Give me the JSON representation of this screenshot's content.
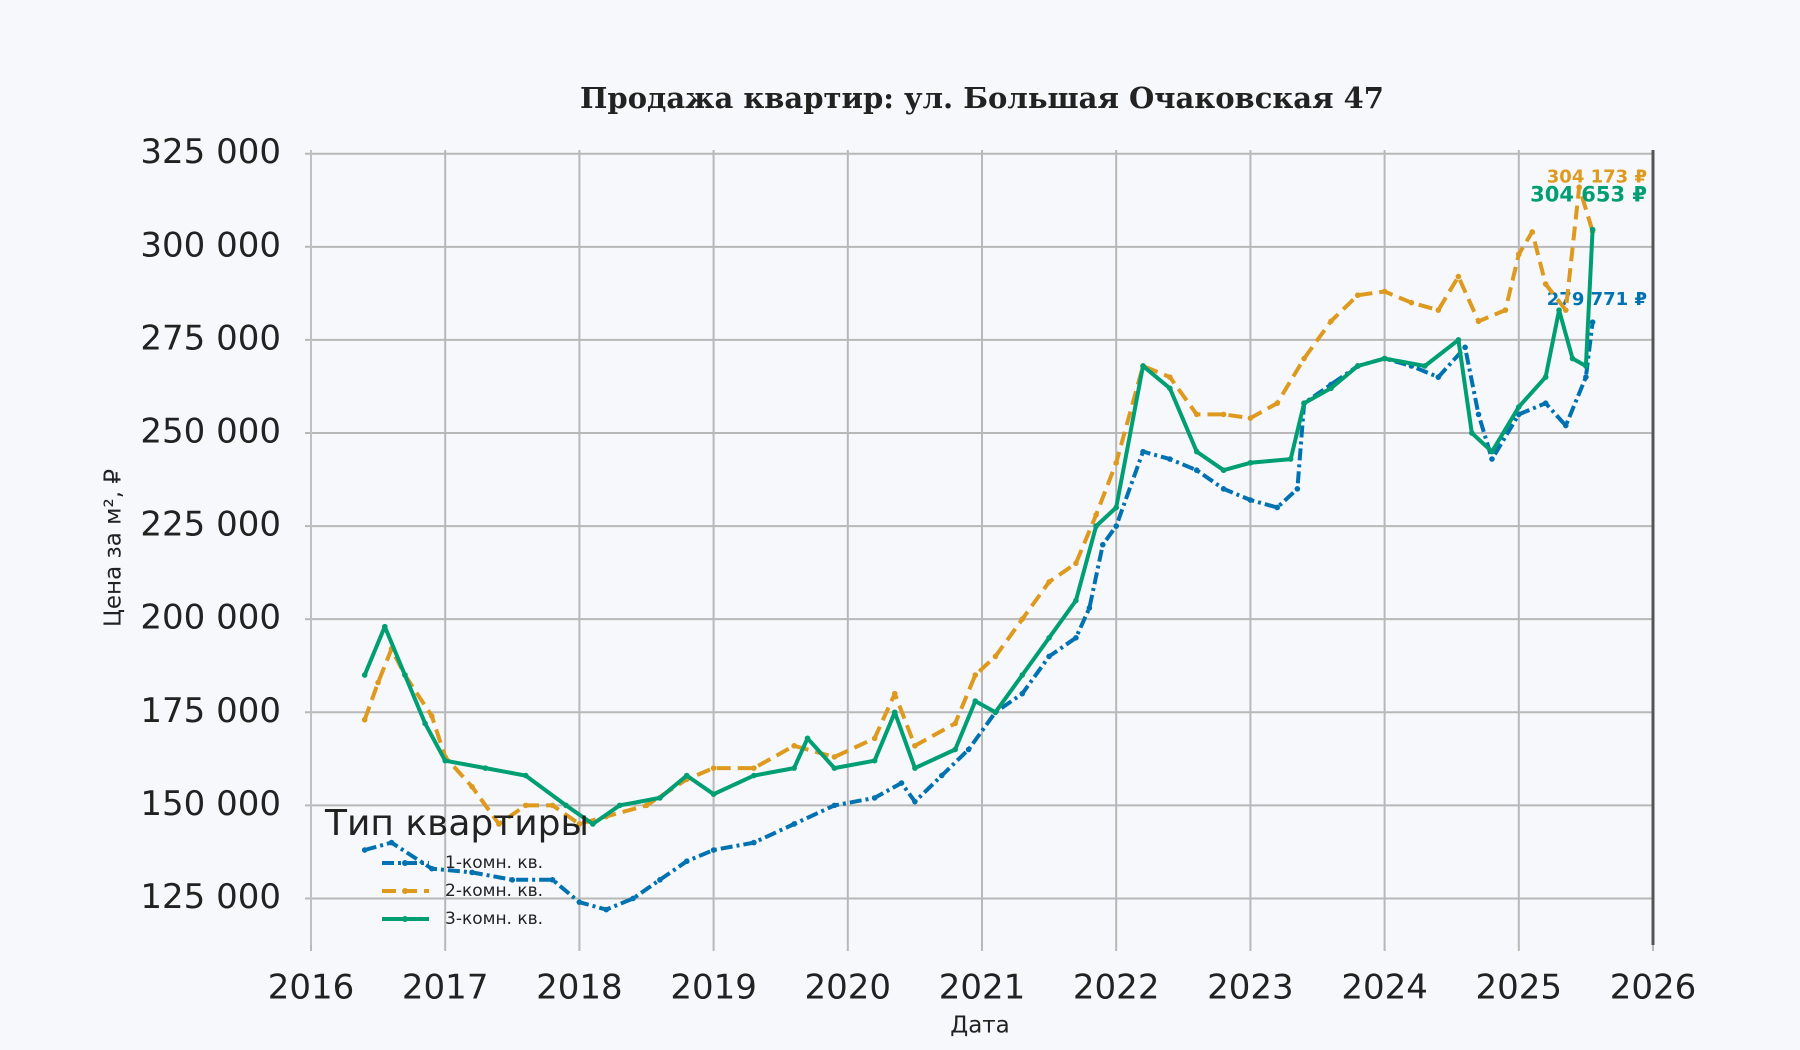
{
  "chart_data": {
    "type": "line",
    "title": "Продажа квартир: ул. Большая Очаковская 47",
    "x_label": "Дата",
    "y_label": "Цена за м², ₽",
    "xlim": [
      2016,
      2026
    ],
    "xticks": [
      2016,
      2017,
      2018,
      2019,
      2020,
      2021,
      2022,
      2023,
      2024,
      2025,
      2026
    ],
    "ylim": [
      112500,
      326000
    ],
    "yticks": [
      {
        "value": 125000,
        "label": "125 000"
      },
      {
        "value": 150000,
        "label": "150 000"
      },
      {
        "value": 175000,
        "label": "175 000"
      },
      {
        "value": 200000,
        "label": "200 000"
      },
      {
        "value": 225000,
        "label": "225 000"
      },
      {
        "value": 250000,
        "label": "250 000"
      },
      {
        "value": 275000,
        "label": "275 000"
      },
      {
        "value": 300000,
        "label": "300 000"
      },
      {
        "value": 325000,
        "label": "325 000"
      }
    ],
    "grid": true,
    "legend_title": "Тип квартиры",
    "legend_position": "lower left",
    "series": [
      {
        "name": "1-комн. кв.",
        "color": "#0072b2",
        "dash": "dashdot",
        "end_label": "279 771 ₽",
        "x": [
          2016.4,
          2016.6,
          2016.9,
          2017.2,
          2017.5,
          2017.8,
          2018.0,
          2018.2,
          2018.4,
          2018.6,
          2018.8,
          2019.0,
          2019.3,
          2019.6,
          2019.9,
          2020.2,
          2020.4,
          2020.5,
          2020.7,
          2020.9,
          2021.1,
          2021.3,
          2021.5,
          2021.7,
          2021.8,
          2021.9,
          2022.0,
          2022.2,
          2022.4,
          2022.6,
          2022.8,
          2023.0,
          2023.2,
          2023.35,
          2023.4,
          2023.6,
          2023.8,
          2024.0,
          2024.2,
          2024.4,
          2024.6,
          2024.7,
          2024.8,
          2025.0,
          2025.2,
          2025.35,
          2025.5,
          2025.55
        ],
        "values": [
          138000,
          140000,
          133000,
          132000,
          130000,
          130000,
          124000,
          122000,
          125000,
          130000,
          135000,
          138000,
          140000,
          145000,
          150000,
          152000,
          156000,
          151000,
          158000,
          165000,
          175000,
          180000,
          190000,
          195000,
          203000,
          220000,
          225000,
          245000,
          243000,
          240000,
          235000,
          232000,
          230000,
          235000,
          258000,
          263000,
          268000,
          270000,
          268000,
          265000,
          273000,
          255000,
          243000,
          255000,
          258000,
          252000,
          265000,
          279771
        ]
      },
      {
        "name": "2-комн. кв.",
        "color": "#de9a1e",
        "dash": "dashed",
        "end_label": "304 173 ₽",
        "x": [
          2016.4,
          2016.5,
          2016.6,
          2016.7,
          2016.9,
          2017.0,
          2017.2,
          2017.4,
          2017.6,
          2017.8,
          2018.0,
          2018.2,
          2018.5,
          2018.8,
          2019.0,
          2019.3,
          2019.6,
          2019.9,
          2020.2,
          2020.35,
          2020.5,
          2020.8,
          2020.95,
          2021.1,
          2021.3,
          2021.5,
          2021.7,
          2021.85,
          2022.0,
          2022.2,
          2022.4,
          2022.6,
          2022.8,
          2023.0,
          2023.2,
          2023.4,
          2023.6,
          2023.8,
          2024.0,
          2024.2,
          2024.4,
          2024.55,
          2024.7,
          2024.9,
          2025.0,
          2025.1,
          2025.2,
          2025.35,
          2025.45,
          2025.55
        ],
        "values": [
          173000,
          183000,
          192000,
          185000,
          174000,
          163000,
          155000,
          145000,
          150000,
          150000,
          145000,
          147000,
          150000,
          157000,
          160000,
          160000,
          166000,
          163000,
          168000,
          180000,
          166000,
          172000,
          185000,
          190000,
          200000,
          210000,
          215000,
          228000,
          242000,
          268000,
          265000,
          255000,
          255000,
          254000,
          258000,
          270000,
          280000,
          287000,
          288000,
          285000,
          283000,
          292000,
          280000,
          283000,
          298000,
          304000,
          290000,
          283000,
          316000,
          304173
        ]
      },
      {
        "name": "3-комн. кв.",
        "color": "#009e73",
        "dash": "solid",
        "end_label": "304 653 ₽",
        "x": [
          2016.4,
          2016.55,
          2016.7,
          2016.85,
          2017.0,
          2017.3,
          2017.6,
          2017.9,
          2018.1,
          2018.3,
          2018.6,
          2018.8,
          2019.0,
          2019.3,
          2019.6,
          2019.7,
          2019.9,
          2020.2,
          2020.35,
          2020.5,
          2020.8,
          2020.95,
          2021.1,
          2021.3,
          2021.5,
          2021.7,
          2021.85,
          2022.0,
          2022.2,
          2022.4,
          2022.6,
          2022.8,
          2023.0,
          2023.3,
          2023.4,
          2023.6,
          2023.8,
          2024.0,
          2024.3,
          2024.55,
          2024.65,
          2024.8,
          2025.0,
          2025.2,
          2025.3,
          2025.4,
          2025.5,
          2025.55
        ],
        "values": [
          185000,
          198000,
          185000,
          172000,
          162000,
          160000,
          158000,
          150000,
          145000,
          150000,
          152000,
          158000,
          153000,
          158000,
          160000,
          168000,
          160000,
          162000,
          175000,
          160000,
          165000,
          178000,
          175000,
          185000,
          195000,
          205000,
          225000,
          230000,
          268000,
          262000,
          245000,
          240000,
          242000,
          243000,
          258000,
          262000,
          268000,
          270000,
          268000,
          275000,
          250000,
          245000,
          257000,
          265000,
          283000,
          270000,
          268000,
          304653
        ]
      }
    ]
  }
}
